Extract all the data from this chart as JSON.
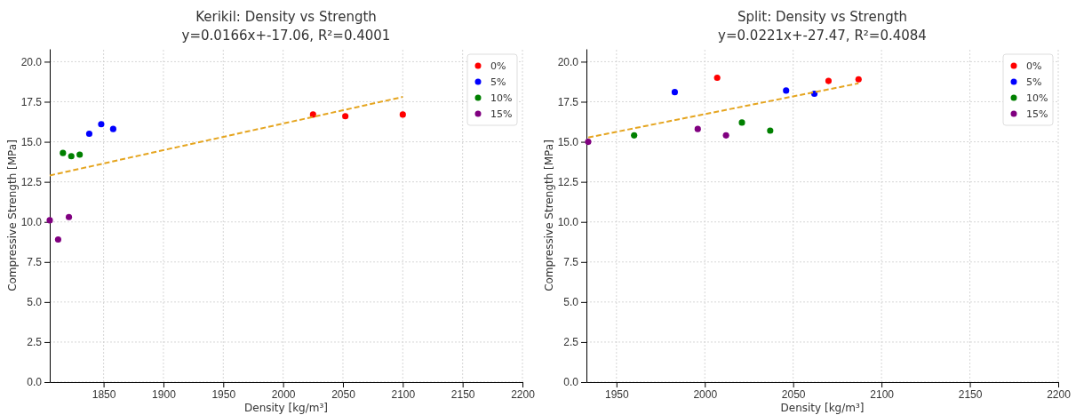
{
  "chart_data": [
    {
      "type": "scatter",
      "title": "Kerikil: Density vs Strength",
      "subtitle": "y=0.0166x+-17.06, R²=0.4001",
      "xlabel": "Density [kg/m³]",
      "ylabel": "Compressive Strength [MPa]",
      "xlim": [
        1805,
        2200
      ],
      "ylim": [
        0,
        20.8
      ],
      "xticks": [
        1850,
        1900,
        1950,
        2000,
        2050,
        2100,
        2150,
        2200
      ],
      "yticks": [
        {
          "value": 0,
          "label": "0.0"
        },
        2.5,
        {
          "value": 5,
          "label": "5.0"
        },
        7.5,
        {
          "value": 10,
          "label": "10.0"
        },
        12.5,
        {
          "value": 15,
          "label": "15.0"
        },
        17.5,
        {
          "value": 20,
          "label": "20.0"
        }
      ],
      "grid": true,
      "legend": "top right",
      "marker": "circle",
      "series": [
        {
          "name": "0%",
          "color": "#ff0000",
          "x": [
            2025,
            2052,
            2100
          ],
          "values": [
            16.7,
            16.6,
            16.7
          ]
        },
        {
          "name": "5%",
          "color": "#0000ff",
          "x": [
            1838,
            1848,
            1858
          ],
          "values": [
            15.5,
            16.1,
            15.8
          ]
        },
        {
          "name": "10%",
          "color": "#008000",
          "x": [
            1816,
            1823,
            1830
          ],
          "values": [
            14.3,
            14.1,
            14.2
          ]
        },
        {
          "name": "15%",
          "color": "#800080",
          "x": [
            1805,
            1812,
            1821
          ],
          "values": [
            10.1,
            8.9,
            10.3
          ]
        },
        {
          "type": "line",
          "marker": "none",
          "color": "#e5a520",
          "line_style": "dashed",
          "x": [
            1805,
            2100
          ],
          "values": [
            12.9,
            17.8
          ]
        }
      ]
    },
    {
      "type": "scatter",
      "title": "Split: Density vs Strength",
      "subtitle": "y=0.0221x+-27.47, R²=0.4084",
      "xlabel": "Density [kg/m³]",
      "ylabel": "Compressive Strength [MPa]",
      "xlim": [
        1933,
        2200
      ],
      "ylim": [
        0,
        20.8
      ],
      "xticks": [
        1950,
        2000,
        2050,
        2100,
        2150,
        2200
      ],
      "yticks": [
        {
          "value": 0,
          "label": "0.0"
        },
        2.5,
        {
          "value": 5,
          "label": "5.0"
        },
        7.5,
        {
          "value": 10,
          "label": "10.0"
        },
        12.5,
        {
          "value": 15,
          "label": "15.0"
        },
        17.5,
        {
          "value": 20,
          "label": "20.0"
        }
      ],
      "grid": true,
      "legend": "top right",
      "marker": "circle",
      "series": [
        {
          "name": "0%",
          "color": "#ff0000",
          "x": [
            2007,
            2070,
            2087
          ],
          "values": [
            19.0,
            18.8,
            18.9
          ]
        },
        {
          "name": "5%",
          "color": "#0000ff",
          "x": [
            1983,
            2046,
            2062
          ],
          "values": [
            18.1,
            18.2,
            18.0
          ]
        },
        {
          "name": "10%",
          "color": "#008000",
          "x": [
            1960,
            2021,
            2037
          ],
          "values": [
            15.4,
            16.2,
            15.7
          ]
        },
        {
          "name": "15%",
          "color": "#800080",
          "x": [
            1934,
            1996,
            2012
          ],
          "values": [
            15.0,
            15.8,
            15.4
          ]
        },
        {
          "type": "line",
          "marker": "none",
          "color": "#e5a520",
          "line_style": "dashed",
          "x": [
            1934,
            2087
          ],
          "values": [
            15.27,
            18.65
          ]
        }
      ]
    }
  ]
}
